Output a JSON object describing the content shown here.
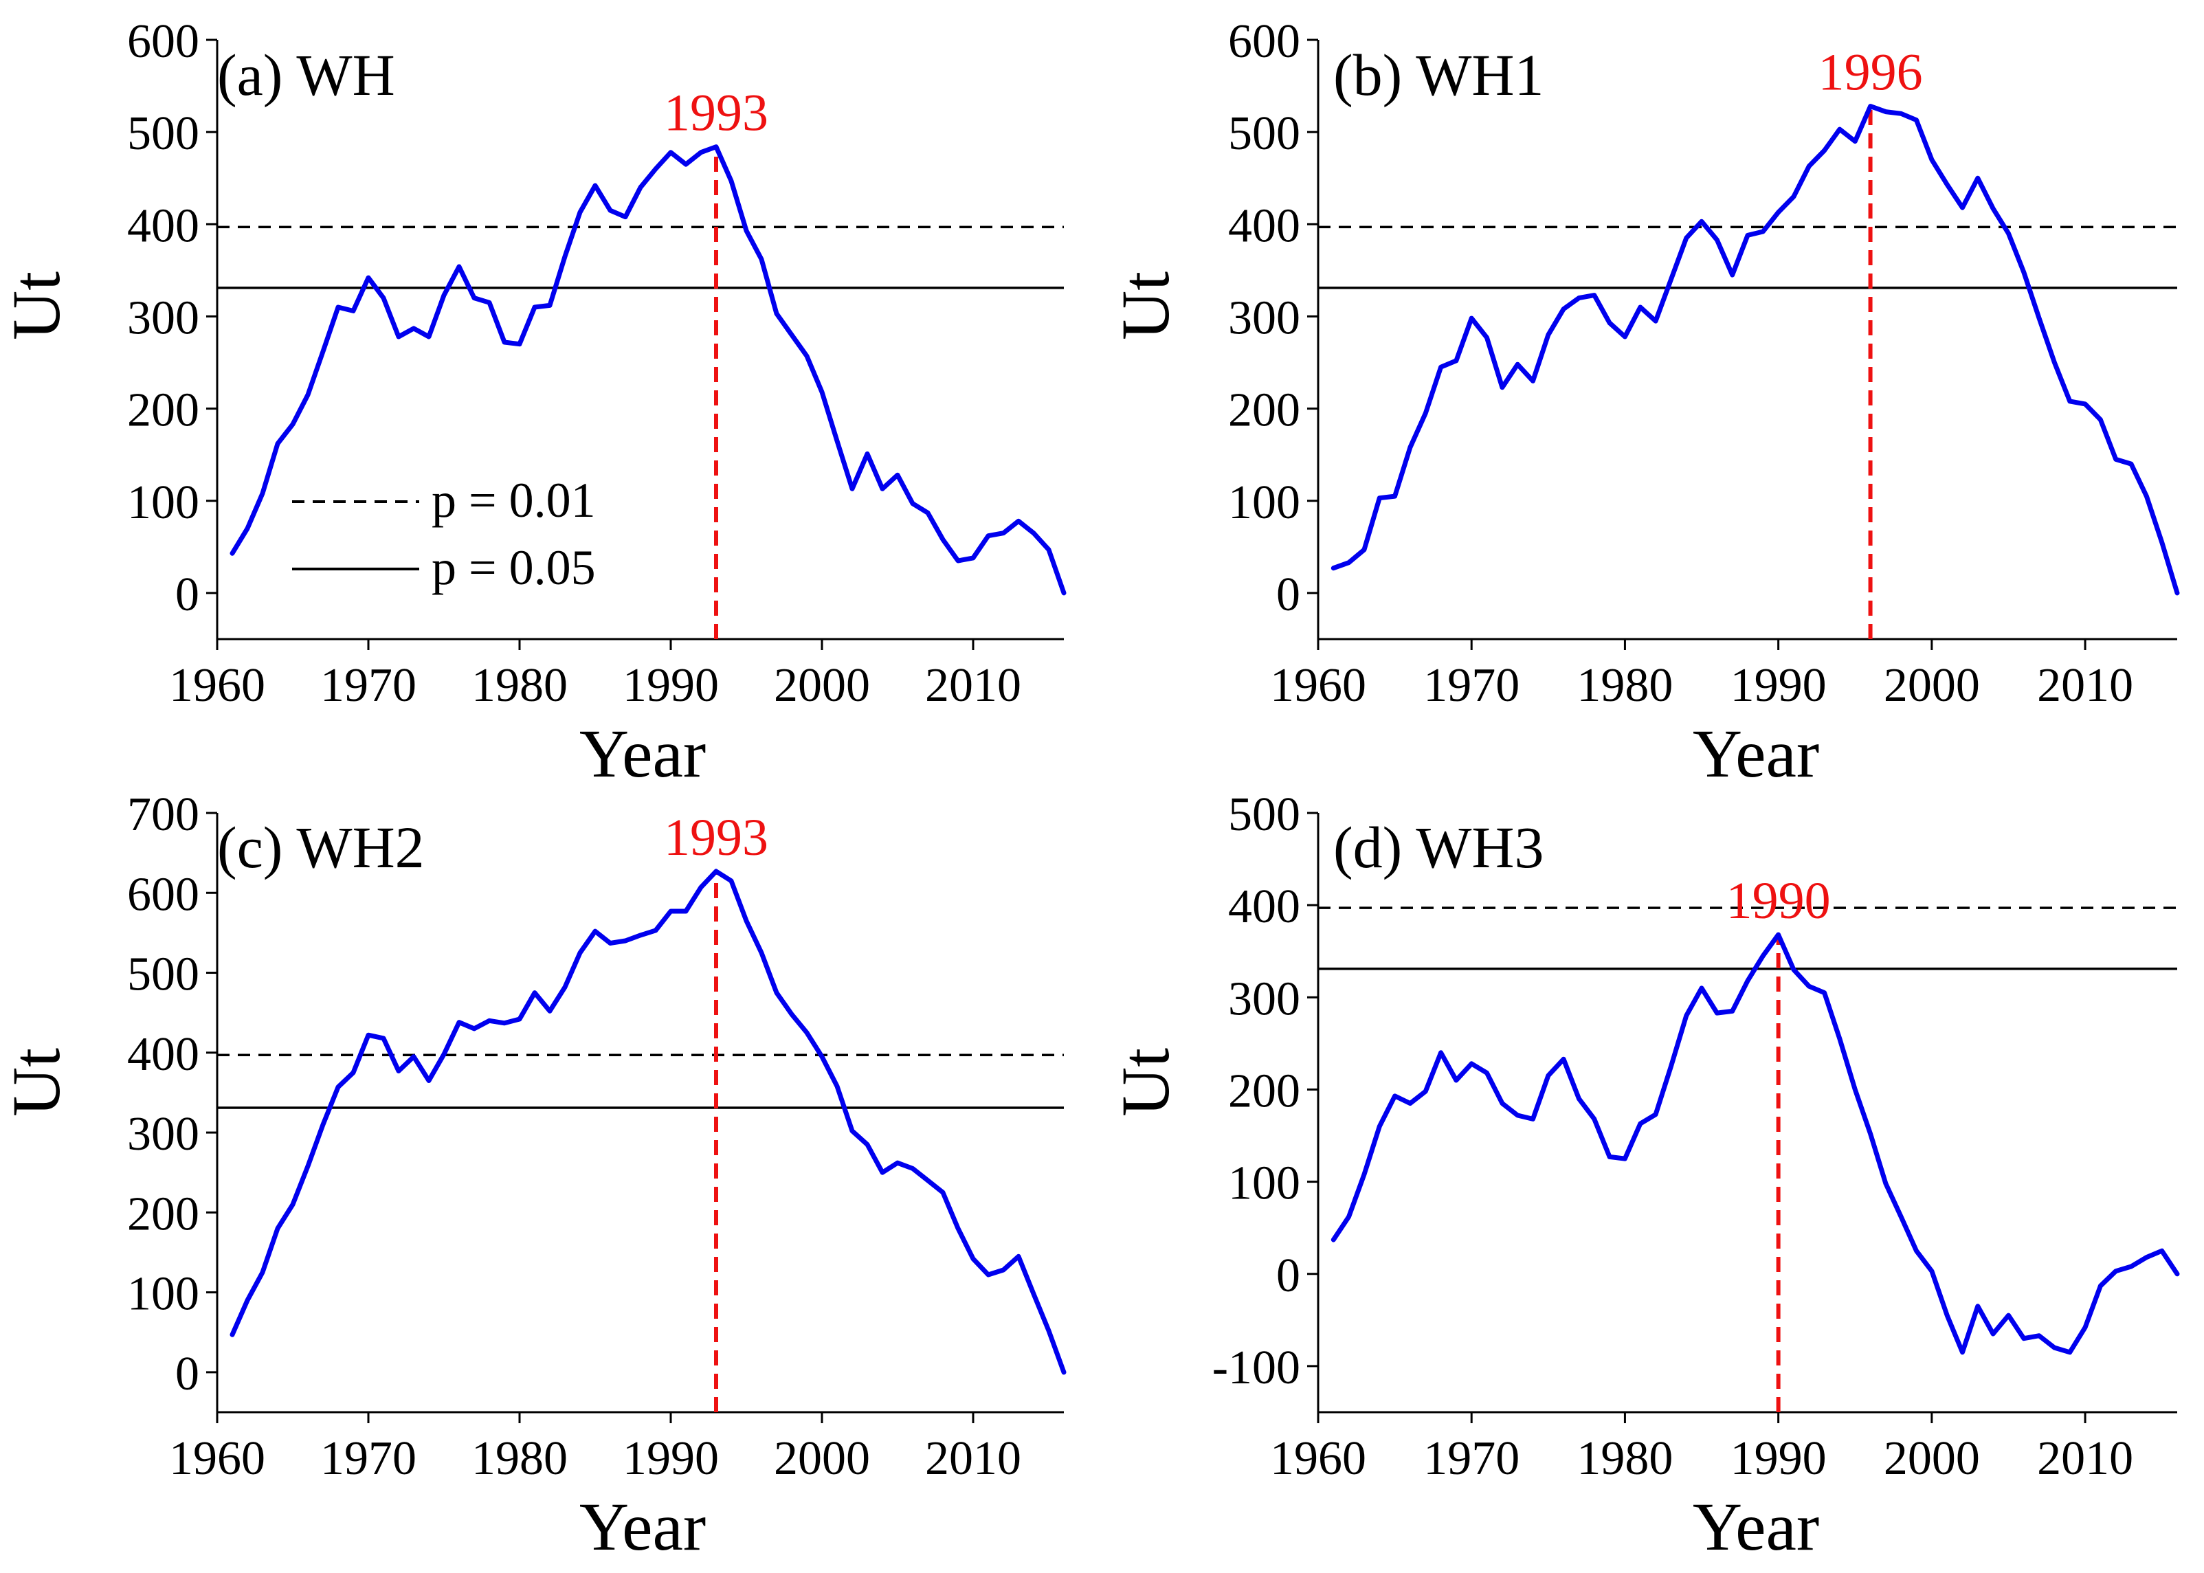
{
  "legend": {
    "dashed_label": "p = 0.01",
    "solid_label": "p = 0.05",
    "placement": "bottom-left of panel (a)"
  },
  "colors": {
    "series": "#0000ee",
    "change_point": "#ee1111",
    "axis": "#000000",
    "threshold": "#000000"
  },
  "chart_data": [
    {
      "type": "line",
      "title": "(a) WH",
      "xlabel": "Year",
      "ylabel": "Ut",
      "xlim": [
        1960,
        2016
      ],
      "ylim": [
        -50,
        600
      ],
      "xticks": [
        1960,
        1970,
        1980,
        1990,
        2000,
        2010
      ],
      "yticks": [
        0,
        100,
        200,
        300,
        400,
        500,
        600
      ],
      "thresholds": [
        {
          "label": "p = 0.01",
          "style": "dashed",
          "value": 397
        },
        {
          "label": "p = 0.05",
          "style": "solid",
          "value": 331
        }
      ],
      "change_point": {
        "year": 1993,
        "label": "1993"
      },
      "series": [
        {
          "name": "WH",
          "x": [
            1961,
            1962,
            1963,
            1964,
            1965,
            1966,
            1967,
            1968,
            1969,
            1970,
            1971,
            1972,
            1973,
            1974,
            1975,
            1976,
            1977,
            1978,
            1979,
            1980,
            1981,
            1982,
            1983,
            1984,
            1985,
            1986,
            1987,
            1988,
            1989,
            1990,
            1991,
            1992,
            1993,
            1994,
            1995,
            1996,
            1997,
            1998,
            1999,
            2000,
            2001,
            2002,
            2003,
            2004,
            2005,
            2006,
            2007,
            2008,
            2009,
            2010,
            2011,
            2012,
            2013,
            2014,
            2015,
            2016
          ],
          "values": [
            43,
            70,
            108,
            162,
            183,
            215,
            262,
            310,
            306,
            342,
            320,
            278,
            287,
            278,
            323,
            354,
            320,
            315,
            272,
            270,
            310,
            312,
            365,
            413,
            442,
            415,
            408,
            440,
            460,
            478,
            465,
            478,
            484,
            447,
            393,
            362,
            303,
            280,
            257,
            218,
            165,
            113,
            151,
            113,
            128,
            97,
            87,
            58,
            35,
            38,
            62,
            65,
            78,
            65,
            47,
            0
          ]
        }
      ]
    },
    {
      "type": "line",
      "title": "(b) WH1",
      "xlabel": "Year",
      "ylabel": "Ut",
      "xlim": [
        1960,
        2016
      ],
      "ylim": [
        -50,
        600
      ],
      "xticks": [
        1960,
        1970,
        1980,
        1990,
        2000,
        2010
      ],
      "yticks": [
        0,
        100,
        200,
        300,
        400,
        500,
        600
      ],
      "thresholds": [
        {
          "label": "p = 0.01",
          "style": "dashed",
          "value": 397
        },
        {
          "label": "p = 0.05",
          "style": "solid",
          "value": 331
        }
      ],
      "change_point": {
        "year": 1996,
        "label": "1996"
      },
      "series": [
        {
          "name": "WH1",
          "x": [
            1961,
            1962,
            1963,
            1964,
            1965,
            1966,
            1967,
            1968,
            1969,
            1970,
            1971,
            1972,
            1973,
            1974,
            1975,
            1976,
            1977,
            1978,
            1979,
            1980,
            1981,
            1982,
            1983,
            1984,
            1985,
            1986,
            1987,
            1988,
            1989,
            1990,
            1991,
            1992,
            1993,
            1994,
            1995,
            1996,
            1997,
            1998,
            1999,
            2000,
            2001,
            2002,
            2003,
            2004,
            2005,
            2006,
            2007,
            2008,
            2009,
            2010,
            2011,
            2012,
            2013,
            2014,
            2015,
            2016
          ],
          "values": [
            27,
            33,
            47,
            103,
            105,
            158,
            195,
            245,
            252,
            298,
            277,
            223,
            248,
            230,
            280,
            308,
            320,
            323,
            293,
            278,
            310,
            295,
            340,
            385,
            403,
            383,
            345,
            388,
            392,
            413,
            430,
            463,
            480,
            503,
            490,
            528,
            522,
            520,
            513,
            470,
            443,
            418,
            450,
            417,
            390,
            348,
            298,
            250,
            208,
            205,
            188,
            145,
            140,
            105,
            55,
            0
          ]
        }
      ]
    },
    {
      "type": "line",
      "title": "(c) WH2",
      "xlabel": "Year",
      "ylabel": "Ut",
      "xlim": [
        1960,
        2016
      ],
      "ylim": [
        -50,
        700
      ],
      "xticks": [
        1960,
        1970,
        1980,
        1990,
        2000,
        2010
      ],
      "yticks": [
        0,
        100,
        200,
        300,
        400,
        500,
        600,
        700
      ],
      "thresholds": [
        {
          "label": "p = 0.01",
          "style": "dashed",
          "value": 397
        },
        {
          "label": "p = 0.05",
          "style": "solid",
          "value": 331
        }
      ],
      "change_point": {
        "year": 1993,
        "label": "1993"
      },
      "series": [
        {
          "name": "WH2",
          "x": [
            1961,
            1962,
            1963,
            1964,
            1965,
            1966,
            1967,
            1968,
            1969,
            1970,
            1971,
            1972,
            1973,
            1974,
            1975,
            1976,
            1977,
            1978,
            1979,
            1980,
            1981,
            1982,
            1983,
            1984,
            1985,
            1986,
            1987,
            1988,
            1989,
            1990,
            1991,
            1992,
            1993,
            1994,
            1995,
            1996,
            1997,
            1998,
            1999,
            2000,
            2001,
            2002,
            2003,
            2004,
            2005,
            2006,
            2007,
            2008,
            2009,
            2010,
            2011,
            2012,
            2013,
            2014,
            2015,
            2016
          ],
          "values": [
            47,
            90,
            125,
            180,
            210,
            258,
            310,
            357,
            375,
            422,
            418,
            377,
            395,
            365,
            398,
            438,
            430,
            440,
            437,
            442,
            475,
            452,
            482,
            525,
            552,
            537,
            540,
            547,
            553,
            577,
            577,
            607,
            627,
            615,
            565,
            525,
            475,
            448,
            425,
            395,
            358,
            302,
            285,
            250,
            262,
            255,
            240,
            225,
            180,
            142,
            122,
            128,
            145,
            98,
            52,
            0
          ]
        }
      ]
    },
    {
      "type": "line",
      "title": "(d) WH3",
      "xlabel": "Year",
      "ylabel": "Ut",
      "xlim": [
        1960,
        2016
      ],
      "ylim": [
        -150,
        500
      ],
      "xticks": [
        1960,
        1970,
        1980,
        1990,
        2000,
        2010
      ],
      "yticks": [
        -100,
        0,
        100,
        200,
        300,
        400,
        500
      ],
      "thresholds": [
        {
          "label": "p = 0.01",
          "style": "dashed",
          "value": 397
        },
        {
          "label": "p = 0.05",
          "style": "solid",
          "value": 331
        }
      ],
      "change_point": {
        "year": 1990,
        "label": "1990"
      },
      "series": [
        {
          "name": "WH3",
          "x": [
            1961,
            1962,
            1963,
            1964,
            1965,
            1966,
            1967,
            1968,
            1969,
            1970,
            1971,
            1972,
            1973,
            1974,
            1975,
            1976,
            1977,
            1978,
            1979,
            1980,
            1981,
            1982,
            1983,
            1984,
            1985,
            1986,
            1987,
            1988,
            1989,
            1990,
            1991,
            1992,
            1993,
            1994,
            1995,
            1996,
            1997,
            1998,
            1999,
            2000,
            2001,
            2002,
            2003,
            2004,
            2005,
            2006,
            2007,
            2008,
            2009,
            2010,
            2011,
            2012,
            2013,
            2014,
            2015,
            2016
          ],
          "values": [
            37,
            62,
            108,
            160,
            193,
            185,
            198,
            240,
            210,
            228,
            218,
            185,
            172,
            168,
            215,
            233,
            190,
            168,
            127,
            125,
            163,
            173,
            225,
            280,
            310,
            283,
            285,
            318,
            345,
            368,
            330,
            312,
            305,
            255,
            200,
            152,
            98,
            62,
            25,
            3,
            -45,
            -85,
            -35,
            -65,
            -45,
            -70,
            -67,
            -80,
            -85,
            -58,
            -13,
            3,
            8,
            18,
            25,
            0
          ]
        }
      ]
    }
  ]
}
